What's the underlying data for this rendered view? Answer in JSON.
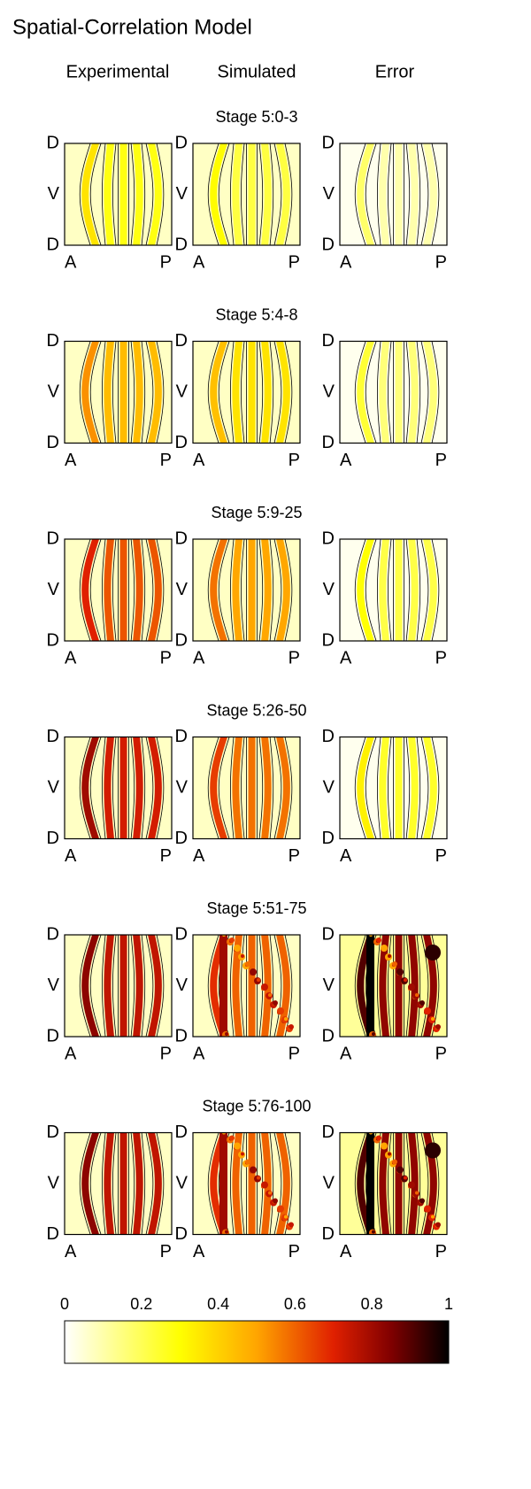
{
  "title": "Spatial-Correlation Model",
  "columns": [
    "Experimental",
    "Simulated",
    "Error"
  ],
  "axis_labels": {
    "top": "D",
    "middle": "V",
    "bottom": "D",
    "left": "A",
    "right": "P"
  },
  "rows": [
    {
      "stage": "Stage 5:0-3"
    },
    {
      "stage": "Stage 5:4-8"
    },
    {
      "stage": "Stage 5:9-25"
    },
    {
      "stage": "Stage 5:26-50"
    },
    {
      "stage": "Stage 5:51-75"
    },
    {
      "stage": "Stage 5:76-100"
    }
  ],
  "colorbar": {
    "ticks": [
      0,
      0.2,
      0.4,
      0.6,
      0.8,
      1
    ]
  }
}
